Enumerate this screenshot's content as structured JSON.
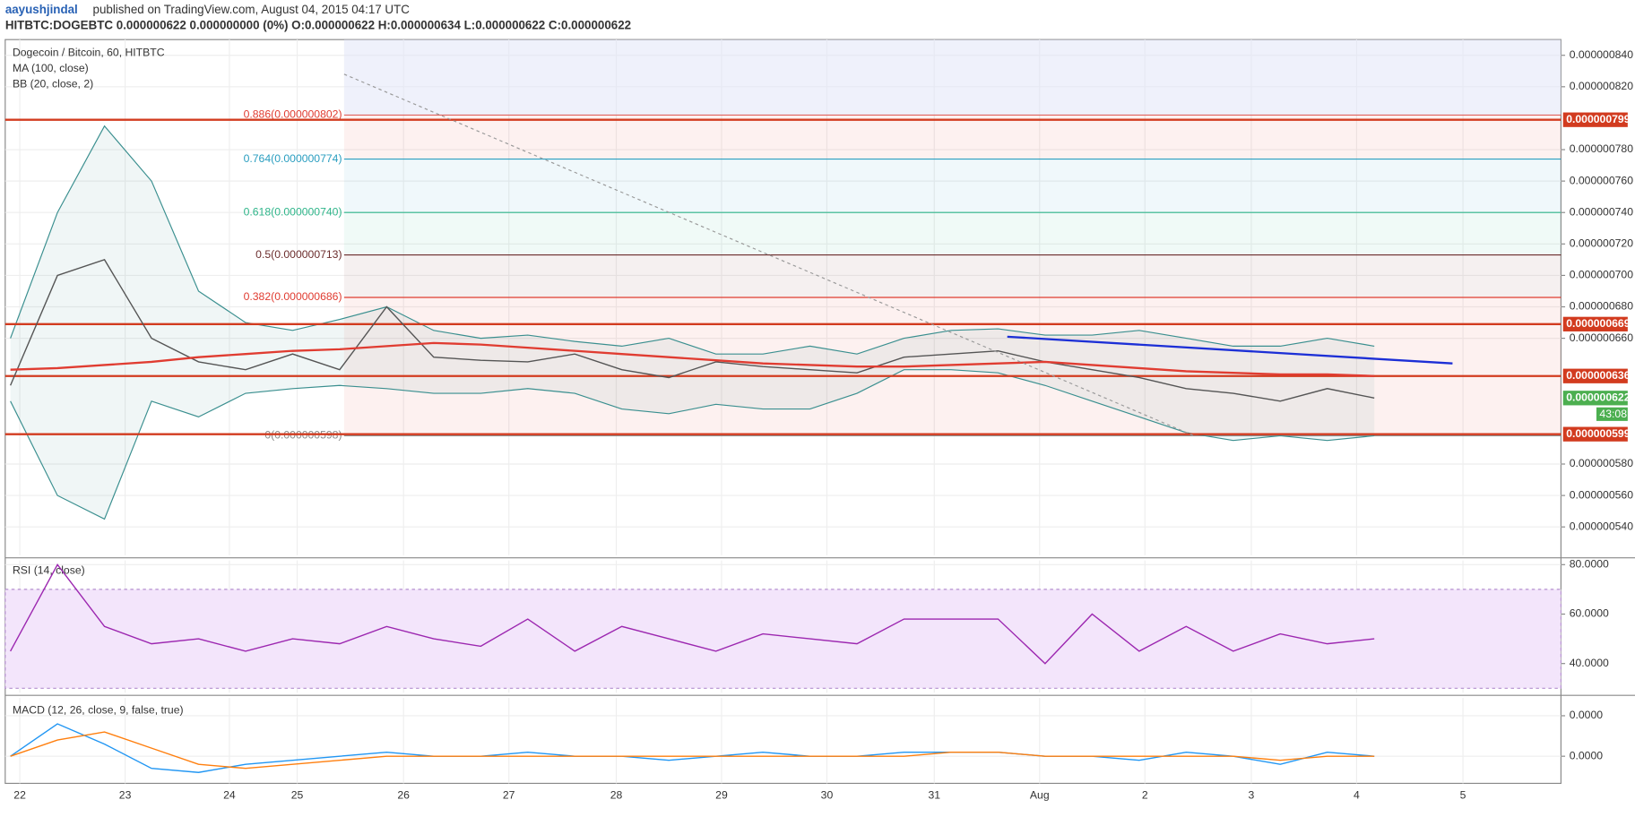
{
  "header": {
    "author": "aayushjindal",
    "published": "published on TradingView.com, August 04, 2015 04:17 UTC",
    "symbol": "HITBTC:DOGEBTC 0.000000622 0.000000000 (0%) O:0.000000622 H:0.000000634 L:0.000000622 C:0.000000622"
  },
  "chart_data": [
    {
      "type": "line",
      "title": "Dogecoin / Bitcoin, 60, HITBTC",
      "x_axis_labels": [
        "22",
        "23",
        "24",
        "25",
        "26",
        "27",
        "28",
        "29",
        "30",
        "31",
        "Aug",
        "2",
        "3",
        "4",
        "5"
      ],
      "ylim": [
        5.22e-07,
        8.5e-07
      ],
      "yticks": [
        {
          "value": 8.4e-07,
          "label": "0.000000840"
        },
        {
          "value": 8.2e-07,
          "label": "0.000000820"
        },
        {
          "value": 7.8e-07,
          "label": "0.000000780"
        },
        {
          "value": 7.6e-07,
          "label": "0.000000760"
        },
        {
          "value": 7.4e-07,
          "label": "0.000000740"
        },
        {
          "value": 7.2e-07,
          "label": "0.000000720"
        },
        {
          "value": 7e-07,
          "label": "0.000000700"
        },
        {
          "value": 6.8e-07,
          "label": "0.000000680"
        },
        {
          "value": 6.6e-07,
          "label": "0.000000660"
        },
        {
          "value": 5.8e-07,
          "label": "0.000000580"
        },
        {
          "value": 5.6e-07,
          "label": "0.000000560"
        },
        {
          "value": 5.4e-07,
          "label": "0.000000540"
        }
      ],
      "series": [
        {
          "name": "Dogecoin / Bitcoin, 60, HITBTC",
          "color": "#555555",
          "values": [
            6.3e-07,
            7e-07,
            7.1e-07,
            6.6e-07,
            6.45e-07,
            6.4e-07,
            6.5e-07,
            6.4e-07,
            6.8e-07,
            6.48e-07,
            6.46e-07,
            6.45e-07,
            6.5e-07,
            6.4e-07,
            6.35e-07,
            6.45e-07,
            6.42e-07,
            6.4e-07,
            6.38e-07,
            6.48e-07,
            6.5e-07,
            6.52e-07,
            6.45e-07,
            6.4e-07,
            6.35e-07,
            6.28e-07,
            6.25e-07,
            6.2e-07,
            6.28e-07,
            6.22e-07
          ]
        },
        {
          "name": "MA (100, close)",
          "color": "#e03c31",
          "values": [
            6.4e-07,
            6.41e-07,
            6.43e-07,
            6.45e-07,
            6.48e-07,
            6.5e-07,
            6.52e-07,
            6.53e-07,
            6.55e-07,
            6.57e-07,
            6.56e-07,
            6.54e-07,
            6.52e-07,
            6.5e-07,
            6.48e-07,
            6.46e-07,
            6.44e-07,
            6.43e-07,
            6.42e-07,
            6.42e-07,
            6.43e-07,
            6.44e-07,
            6.45e-07,
            6.43e-07,
            6.41e-07,
            6.39e-07,
            6.38e-07,
            6.37e-07,
            6.37e-07,
            6.36e-07
          ]
        }
      ],
      "bb": {
        "name": "BB (20, close, 2)",
        "color": "#3a8f8f",
        "upper": [
          6.6e-07,
          7.4e-07,
          7.95e-07,
          7.6e-07,
          6.9e-07,
          6.7e-07,
          6.65e-07,
          6.72e-07,
          6.8e-07,
          6.65e-07,
          6.6e-07,
          6.62e-07,
          6.58e-07,
          6.55e-07,
          6.6e-07,
          6.5e-07,
          6.5e-07,
          6.55e-07,
          6.5e-07,
          6.6e-07,
          6.65e-07,
          6.66e-07,
          6.62e-07,
          6.62e-07,
          6.65e-07,
          6.6e-07,
          6.55e-07,
          6.55e-07,
          6.6e-07,
          6.55e-07
        ],
        "lower": [
          6.2e-07,
          5.6e-07,
          5.45e-07,
          6.2e-07,
          6.1e-07,
          6.25e-07,
          6.28e-07,
          6.3e-07,
          6.28e-07,
          6.25e-07,
          6.25e-07,
          6.28e-07,
          6.25e-07,
          6.15e-07,
          6.12e-07,
          6.18e-07,
          6.15e-07,
          6.15e-07,
          6.25e-07,
          6.4e-07,
          6.4e-07,
          6.38e-07,
          6.3e-07,
          6.2e-07,
          6.1e-07,
          6e-07,
          5.95e-07,
          5.98e-07,
          5.95e-07,
          5.98e-07
        ]
      },
      "fib_levels": [
        {
          "label": "0.886(0.000000802)",
          "value": 8.02e-07,
          "color": "#e03c31"
        },
        {
          "label": "0.764(0.000000774)",
          "value": 7.74e-07,
          "color": "#2a9ec0"
        },
        {
          "label": "0.618(0.000000740)",
          "value": 7.4e-07,
          "color": "#2fb58a"
        },
        {
          "label": "0.5(0.000000713)",
          "value": 7.13e-07,
          "color": "#6b2c2c"
        },
        {
          "label": "0.382(0.000000686)",
          "value": 6.86e-07,
          "color": "#e03c31"
        },
        {
          "label": "0(0.000000598)",
          "value": 5.98e-07,
          "color": "#888888"
        }
      ],
      "price_levels": [
        {
          "value": 7.99e-07,
          "label": "0.000000799"
        },
        {
          "value": 6.69e-07,
          "label": "0.000000669"
        },
        {
          "value": 6.36e-07,
          "label": "0.000000636"
        },
        {
          "value": 5.99e-07,
          "label": "0.000000599"
        }
      ],
      "level_color": "#d23b1f",
      "last_price": {
        "value": 6.22e-07,
        "label": "0.000000622",
        "color": "#4caf50"
      },
      "countdown": "43:08",
      "trend_lines": [
        {
          "color": "#1c2fd6",
          "values": [
            6.61e-07,
            6.44e-07
          ]
        },
        {
          "color": "#999999",
          "values": [
            8.28e-07,
            5.98e-07
          ]
        }
      ]
    },
    {
      "type": "line",
      "title": "RSI (14, close)",
      "ylim": [
        28.2,
        81.7
      ],
      "band": [
        30,
        70
      ],
      "yticks": [
        {
          "value": 80,
          "label": "80.0000"
        },
        {
          "value": 60,
          "label": "60.0000"
        },
        {
          "value": 40,
          "label": "40.0000"
        }
      ],
      "series": [
        {
          "name": "RSI (14, close)",
          "color": "#9c27b0",
          "values": [
            45,
            80,
            55,
            48,
            50,
            45,
            50,
            48,
            55,
            50,
            47,
            58,
            45,
            55,
            50,
            45,
            52,
            50,
            48,
            58,
            58,
            58,
            40,
            60,
            45,
            55,
            45,
            52,
            48,
            50
          ]
        }
      ]
    },
    {
      "type": "line",
      "title": "MACD (12, 26, close, 9, false, true)",
      "ylim": [
        -6.7e-09,
        1.44e-08
      ],
      "yticks": [
        {
          "value": 1e-08,
          "label": "0.0000"
        },
        {
          "value": 0,
          "label": "0.0000"
        }
      ],
      "series": [
        {
          "name": "MACD",
          "color": "#2196f3",
          "values": [
            0,
            8e-09,
            3e-09,
            -3e-09,
            -4e-09,
            -2e-09,
            -1e-09,
            0,
            1e-09,
            0,
            0,
            1e-09,
            0,
            0,
            -1e-09,
            0,
            1e-09,
            0,
            0,
            1e-09,
            1e-09,
            1e-09,
            0,
            0,
            -1e-09,
            1e-09,
            0,
            -2e-09,
            1e-09,
            0
          ]
        },
        {
          "name": "Signal",
          "color": "#ff7f0e",
          "values": [
            0,
            4e-09,
            6e-09,
            2e-09,
            -2e-09,
            -3e-09,
            -2e-09,
            -1e-09,
            0,
            0,
            0,
            0,
            0,
            0,
            0,
            0,
            0,
            0,
            0,
            0,
            1e-09,
            1e-09,
            0,
            0,
            0,
            0,
            0,
            -1e-09,
            0,
            0
          ]
        }
      ]
    }
  ]
}
